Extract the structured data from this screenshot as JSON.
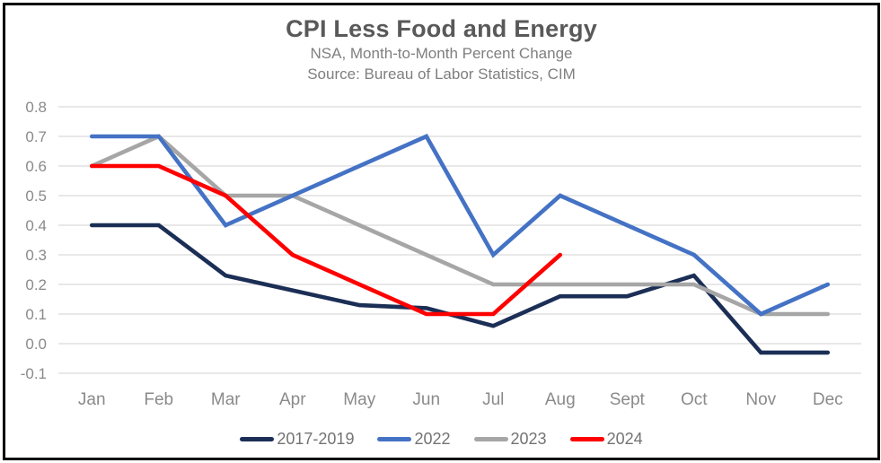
{
  "header": {
    "title": "CPI Less Food and Energy",
    "subtitle_line1": "NSA, Month-to-Month Percent Change",
    "subtitle_line2": "Source: Bureau of Labor Statistics, CIM"
  },
  "chart_data": {
    "type": "line",
    "title": "CPI Less Food and Energy",
    "subtitle": "NSA, Month-to-Month Percent Change",
    "source": "Source: Bureau of Labor Statistics, CIM",
    "categories": [
      "Jan",
      "Feb",
      "Mar",
      "Apr",
      "May",
      "Jun",
      "Jul",
      "Aug",
      "Sept",
      "Oct",
      "Nov",
      "Dec"
    ],
    "y_ticks": [
      "0.8",
      "0.7",
      "0.6",
      "0.5",
      "0.4",
      "0.3",
      "0.2",
      "0.1",
      "0.0",
      "-0.1"
    ],
    "ylim": [
      -0.1,
      0.8
    ],
    "grid": true,
    "legend_position": "bottom",
    "series": [
      {
        "name": "2017-2019",
        "color": "#1b2e55",
        "values": [
          0.4,
          0.4,
          0.23,
          0.18,
          0.13,
          0.12,
          0.06,
          0.16,
          0.16,
          0.23,
          -0.03,
          -0.03
        ]
      },
      {
        "name": "2022",
        "color": "#4472c4",
        "values": [
          0.7,
          0.7,
          0.4,
          0.5,
          0.6,
          0.7,
          0.3,
          0.5,
          0.4,
          0.3,
          0.1,
          0.2
        ]
      },
      {
        "name": "2023",
        "color": "#a6a6a6",
        "values": [
          0.6,
          0.7,
          0.5,
          0.5,
          0.4,
          0.3,
          0.2,
          0.2,
          0.2,
          0.2,
          0.1,
          0.1
        ]
      },
      {
        "name": "2024",
        "color": "#fe0000",
        "values": [
          0.6,
          0.6,
          0.5,
          0.3,
          0.2,
          0.1,
          0.1,
          0.3,
          null,
          null,
          null,
          null
        ]
      }
    ],
    "colors": {
      "title": "#595959",
      "subtitle": "#7f7f7f",
      "axis_labels": "#8a8a8a",
      "gridlines": "#d9d9d9",
      "frame_border": "#000000",
      "background": "#ffffff"
    }
  }
}
